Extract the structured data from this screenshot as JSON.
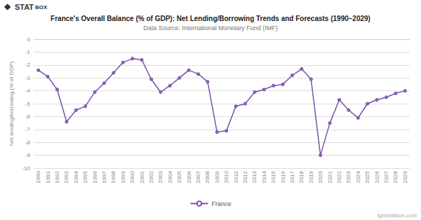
{
  "chart_data": {
    "type": "line",
    "title": "France's Overall Balance (% of GDP): Net Lending/Borrowing Trends and Forecasts (1990–2029)",
    "subtitle": "Data Source: International Monetary Fund (IMF)",
    "ylabel": "Net lending/borrowing (% of GDP)",
    "watermark": "tgmstatbox.com",
    "annotations": [
      "◆",
      "STAT",
      "BOX"
    ],
    "categories": [
      "1990",
      "1991",
      "1992",
      "1993",
      "1994",
      "1995",
      "1996",
      "1997",
      "1998",
      "1999",
      "2000",
      "2001",
      "2002",
      "2003",
      "2004",
      "2005",
      "2006",
      "2007",
      "2008",
      "2009",
      "2010",
      "2011",
      "2012",
      "2013",
      "2014",
      "2015",
      "2016",
      "2017",
      "2018",
      "2019",
      "2020",
      "2021",
      "2022",
      "2023",
      "2024",
      "2025",
      "2026",
      "2027",
      "2028",
      "2029"
    ],
    "series": [
      {
        "name": "France",
        "color": "#7B52AB",
        "values": [
          -2.4,
          -2.9,
          -3.9,
          -6.4,
          -5.5,
          -5.2,
          -4.1,
          -3.4,
          -2.6,
          -1.8,
          -1.5,
          -1.6,
          -3.1,
          -4.1,
          -3.6,
          -3.0,
          -2.4,
          -2.7,
          -3.3,
          -7.2,
          -7.1,
          -5.2,
          -5.0,
          -4.1,
          -3.9,
          -3.6,
          -3.5,
          -2.8,
          -2.3,
          -3.1,
          -9.0,
          -6.5,
          -4.7,
          -5.5,
          -6.1,
          -5.0,
          -4.7,
          -4.5,
          -4.2,
          -4.0
        ]
      }
    ],
    "ylim": [
      -10,
      0
    ],
    "yticks": [
      0,
      -1,
      -2,
      -3,
      -4,
      -5,
      -6,
      -7,
      -8,
      -9,
      -10
    ],
    "grid": true,
    "legend": "bottom"
  }
}
